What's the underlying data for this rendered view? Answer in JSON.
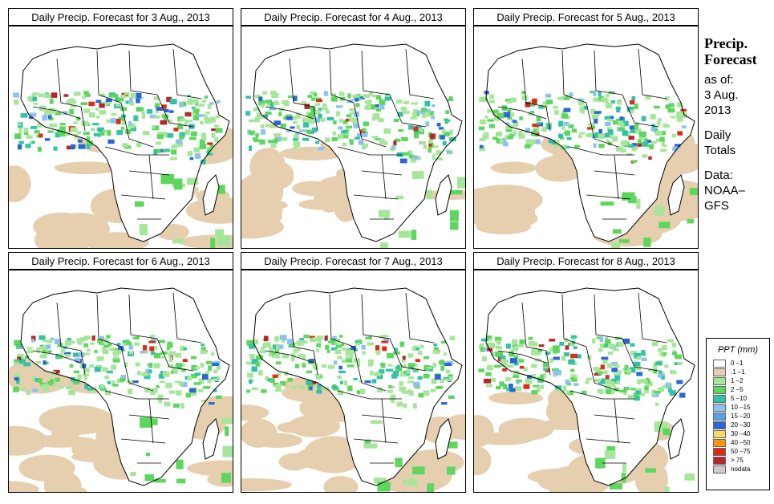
{
  "panels": [
    {
      "title": "Daily Precip. Forecast for  3 Aug., 2013"
    },
    {
      "title": "Daily Precip. Forecast for  4 Aug., 2013"
    },
    {
      "title": "Daily Precip. Forecast for  5 Aug., 2013"
    },
    {
      "title": "Daily Precip. Forecast for  6 Aug., 2013"
    },
    {
      "title": "Daily Precip. Forecast for  7 Aug., 2013"
    },
    {
      "title": "Daily Precip. Forecast for  8 Aug., 2013"
    }
  ],
  "side": {
    "title1": "Precip.",
    "title2": "Forecast",
    "asof": "as of:",
    "date1": "3 Aug.",
    "date2": "2013",
    "daily1": "Daily",
    "daily2": "Totals",
    "data1": "Data:",
    "data2": "NOAA–",
    "data3": "GFS"
  },
  "legend": {
    "title": "PPT (mm)",
    "items": [
      {
        "label": "0 –1",
        "color": "#ffffff"
      },
      {
        "label": ".1 –1",
        "color": "#e6cfae"
      },
      {
        "label": "1 –2",
        "color": "#a6e69a"
      },
      {
        "label": "2 –5",
        "color": "#5cd65c"
      },
      {
        "label": "5 –10",
        "color": "#33c2a8"
      },
      {
        "label": "10 –15",
        "color": "#8fc1f0"
      },
      {
        "label": "15 –20",
        "color": "#5aa0e8"
      },
      {
        "label": "20 –30",
        "color": "#2a66d6"
      },
      {
        "label": "30 –40",
        "color": "#ffd966"
      },
      {
        "label": "40 –50",
        "color": "#ff9900"
      },
      {
        "label": "50 –75",
        "color": "#e02a14"
      },
      {
        "label": "> 75",
        "color": "#b5272c"
      },
      {
        "label": "nodata",
        "color": "#cccccc"
      }
    ]
  }
}
